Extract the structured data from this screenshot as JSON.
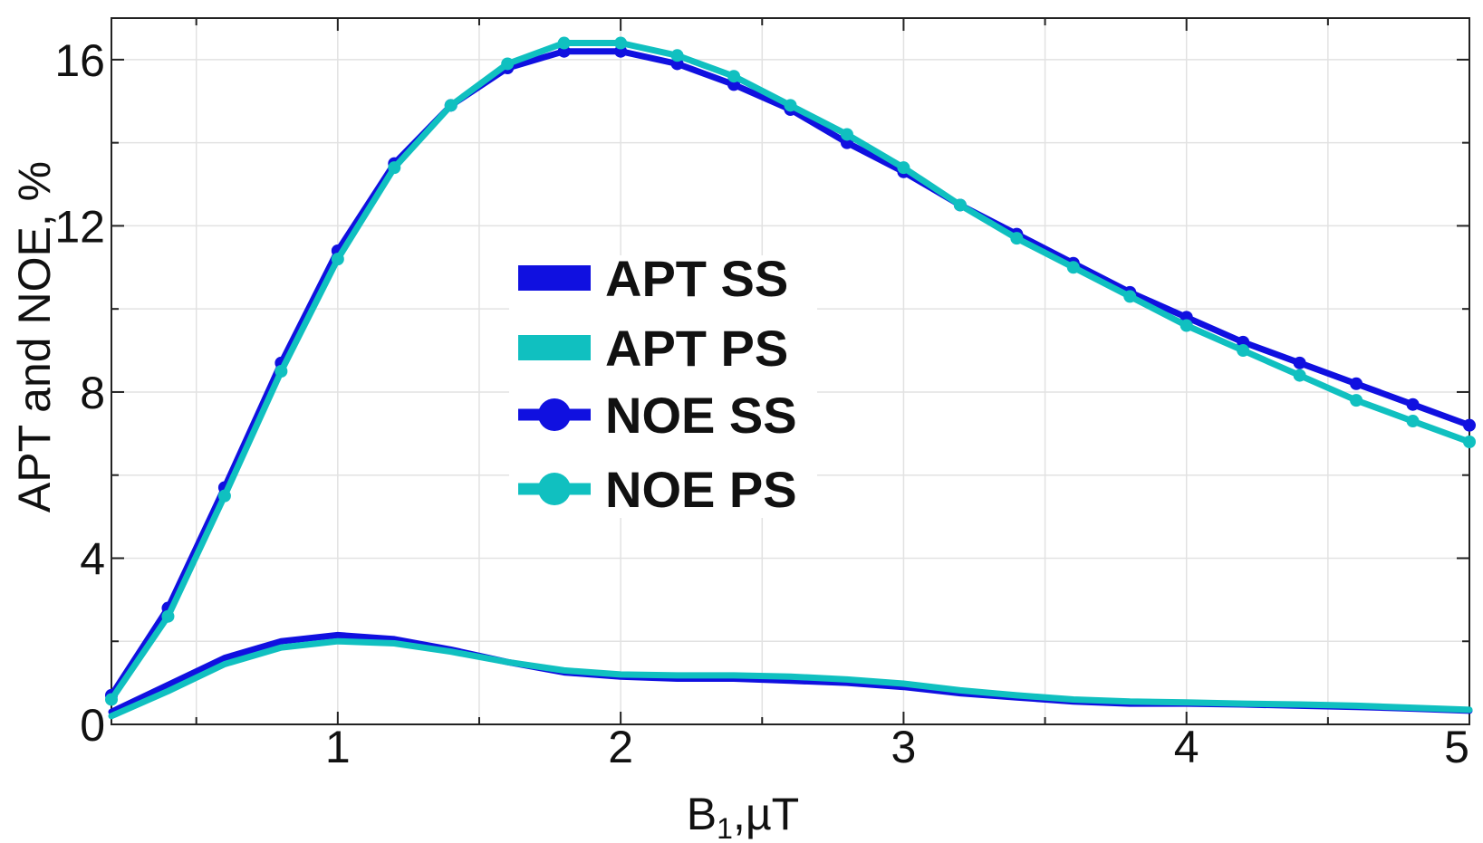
{
  "chart_data": {
    "type": "line",
    "title": "",
    "xlabel": "B",
    "xlabel_sub": "1",
    "xlabel_unit": ",µT",
    "ylabel": "APT and NOE, %",
    "xlim": [
      0.2,
      5.0
    ],
    "ylim": [
      0,
      17
    ],
    "x_ticks": [
      1,
      2,
      3,
      4,
      5
    ],
    "x_tick_labels": [
      "1",
      "2",
      "3",
      "4",
      "5"
    ],
    "y_ticks": [
      0,
      4,
      8,
      12,
      16
    ],
    "y_tick_labels": [
      "0",
      "4",
      "8",
      "12",
      "16"
    ],
    "grid": true,
    "legend_position": "center-left",
    "series": [
      {
        "name": "APT SS",
        "color": "#1010e0",
        "marker": false,
        "x": [
          0.2,
          0.4,
          0.6,
          0.8,
          1.0,
          1.2,
          1.4,
          1.6,
          1.8,
          2.0,
          2.2,
          2.4,
          2.6,
          2.8,
          3.0,
          3.2,
          3.4,
          3.6,
          3.8,
          4.0,
          4.2,
          4.4,
          4.6,
          4.8,
          5.0
        ],
        "values": [
          0.3,
          0.95,
          1.6,
          2.0,
          2.15,
          2.05,
          1.8,
          1.5,
          1.25,
          1.15,
          1.1,
          1.1,
          1.05,
          1.0,
          0.9,
          0.75,
          0.65,
          0.55,
          0.5,
          0.5,
          0.48,
          0.45,
          0.42,
          0.38,
          0.33
        ]
      },
      {
        "name": "APT PS",
        "color": "#10c0c0",
        "marker": false,
        "x": [
          0.2,
          0.4,
          0.6,
          0.8,
          1.0,
          1.2,
          1.4,
          1.6,
          1.8,
          2.0,
          2.2,
          2.4,
          2.6,
          2.8,
          3.0,
          3.2,
          3.4,
          3.6,
          3.8,
          4.0,
          4.2,
          4.4,
          4.6,
          4.8,
          5.0
        ],
        "values": [
          0.2,
          0.8,
          1.45,
          1.85,
          2.0,
          1.95,
          1.75,
          1.5,
          1.3,
          1.2,
          1.18,
          1.18,
          1.15,
          1.08,
          0.98,
          0.82,
          0.7,
          0.6,
          0.55,
          0.53,
          0.5,
          0.48,
          0.45,
          0.4,
          0.35
        ]
      },
      {
        "name": "NOE SS",
        "color": "#1010e0",
        "marker": true,
        "x": [
          0.2,
          0.4,
          0.6,
          0.8,
          1.0,
          1.2,
          1.4,
          1.6,
          1.8,
          2.0,
          2.2,
          2.4,
          2.6,
          2.8,
          3.0,
          3.2,
          3.4,
          3.6,
          3.8,
          4.0,
          4.2,
          4.4,
          4.6,
          4.8,
          5.0
        ],
        "values": [
          0.7,
          2.8,
          5.7,
          8.7,
          11.4,
          13.5,
          14.9,
          15.8,
          16.2,
          16.2,
          15.9,
          15.4,
          14.8,
          14.0,
          13.3,
          12.5,
          11.8,
          11.1,
          10.4,
          9.8,
          9.2,
          8.7,
          8.2,
          7.7,
          7.2
        ]
      },
      {
        "name": "NOE PS",
        "color": "#10c0c0",
        "marker": true,
        "x": [
          0.2,
          0.4,
          0.6,
          0.8,
          1.0,
          1.2,
          1.4,
          1.6,
          1.8,
          2.0,
          2.2,
          2.4,
          2.6,
          2.8,
          3.0,
          3.2,
          3.4,
          3.6,
          3.8,
          4.0,
          4.2,
          4.4,
          4.6,
          4.8,
          5.0
        ],
        "values": [
          0.6,
          2.6,
          5.5,
          8.5,
          11.2,
          13.4,
          14.9,
          15.9,
          16.4,
          16.4,
          16.1,
          15.6,
          14.9,
          14.2,
          13.4,
          12.5,
          11.7,
          11.0,
          10.3,
          9.6,
          9.0,
          8.4,
          7.8,
          7.3,
          6.8
        ]
      }
    ]
  }
}
